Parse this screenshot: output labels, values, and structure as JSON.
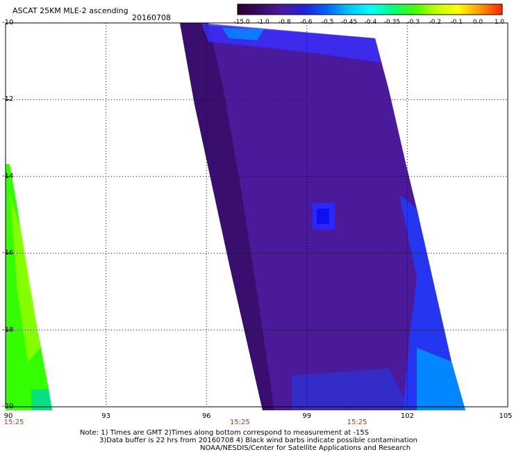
{
  "header": {
    "title": "ASCAT 25KM MLE-2 ascending",
    "date": "20160708"
  },
  "colorbar": {
    "labels": [
      "-15.0",
      "-1.0",
      "-0.8",
      "-0.6",
      "-0.5",
      "-0.45",
      "-0.4",
      "-0.35",
      "-0.3",
      "-0.2",
      "-0.1",
      "0.0",
      "1.0"
    ],
    "colors": [
      "#2a0033",
      "#3a0a60",
      "#4a1aa0",
      "#2020e0",
      "#0060ff",
      "#00c0ff",
      "#00ffff",
      "#00ff80",
      "#40ff00",
      "#c0ff00",
      "#ffff00",
      "#ff9900",
      "#ff2200"
    ]
  },
  "map": {
    "lon_range": [
      90,
      105
    ],
    "lat_range": [
      -20,
      -10
    ],
    "lat_labels": [
      "-10",
      "-12",
      "-14",
      "-16",
      "-18",
      "-20"
    ],
    "lon_labels": [
      "90",
      "93",
      "96",
      "99",
      "102",
      "105"
    ],
    "time_labels": [
      {
        "lon": 90,
        "text": "15:25"
      },
      {
        "lon": 97,
        "text": "15:25"
      },
      {
        "lon": 100.5,
        "text": "15:25"
      }
    ],
    "swath_main_color": "#4a1a9a",
    "swath_dark_color": "#3a0e6e",
    "swath_edge_color": "#1e3cff",
    "swath_left_color": "#33ff00"
  },
  "footer": {
    "note_line1": "Note: 1) Times are GMT 2)Times along bottom correspond to measurement at -15S",
    "note_line2": "3)Data buffer is 22 hrs from 20160708 4) Black wind barbs indicate possible contamination",
    "note_line3": "NOAA/NESDIS/Center for Satellite Applications and Research"
  }
}
